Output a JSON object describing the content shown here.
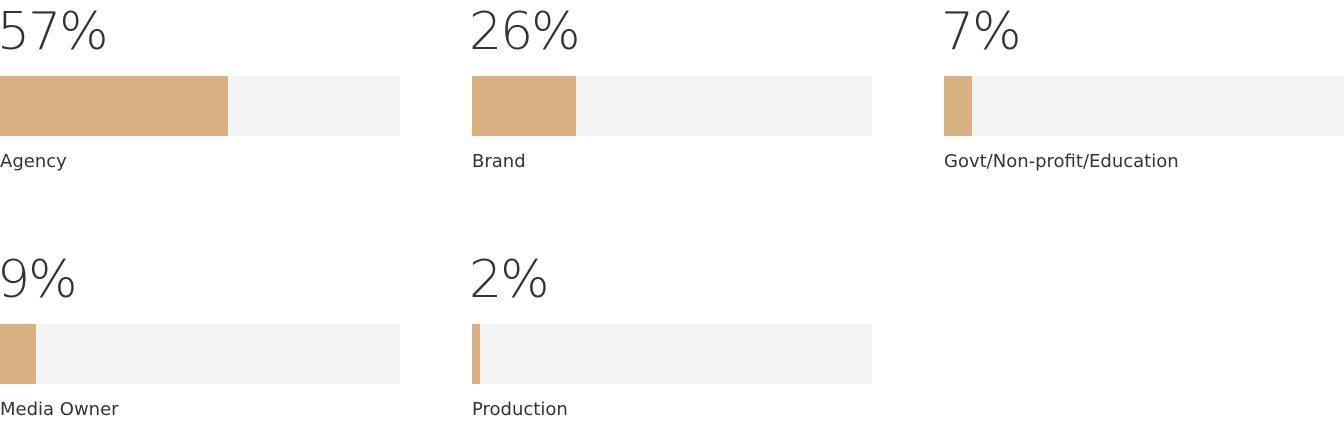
{
  "chart_data": {
    "type": "bar",
    "categories": [
      "Agency",
      "Brand",
      "Govt/Non-profit/Education",
      "Media Owner",
      "Production"
    ],
    "values": [
      57,
      26,
      7,
      9,
      2
    ],
    "value_labels": [
      "57%",
      "26%",
      "7%",
      "9%",
      "2%"
    ],
    "color": "#d6b080",
    "track_color": "#f3f3f3",
    "xlim": [
      0,
      100
    ]
  }
}
